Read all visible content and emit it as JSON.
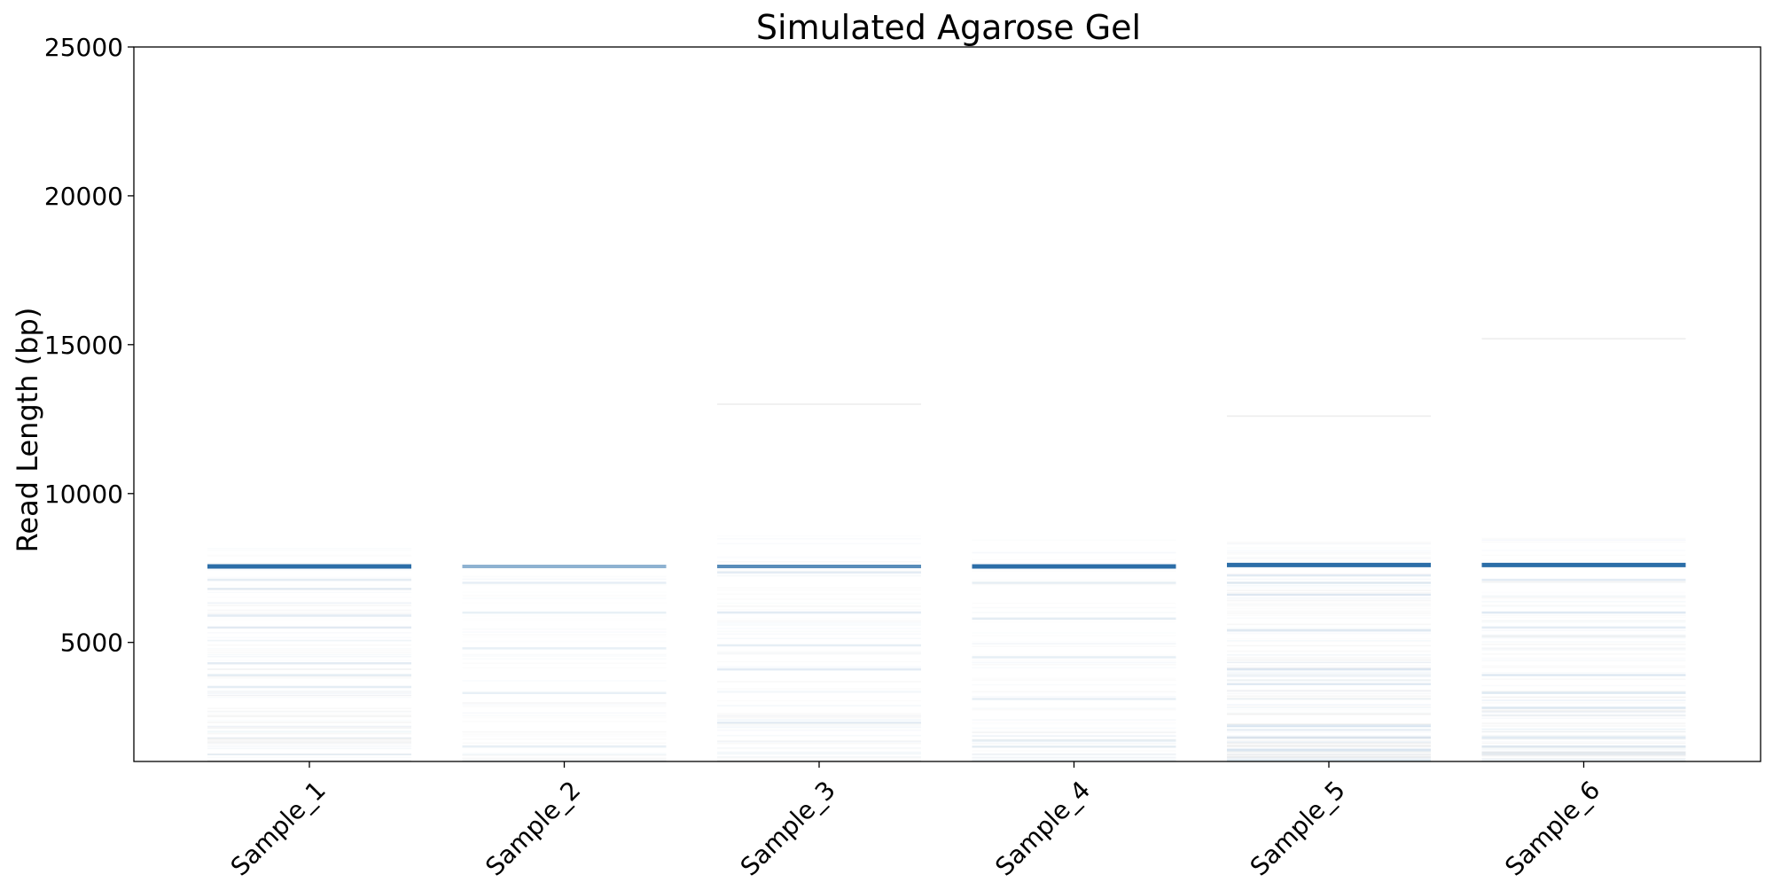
{
  "chart_data": {
    "type": "gel",
    "title": "Simulated Agarose Gel",
    "xlabel": "",
    "ylabel": "Read Length (bp)",
    "ylim": [
      1000,
      25000
    ],
    "yticks": [
      5000,
      10000,
      15000,
      20000,
      25000
    ],
    "grid": false,
    "legend": "none",
    "categories": [
      "Sample_1",
      "Sample_2",
      "Sample_3",
      "Sample_4",
      "Sample_5",
      "Sample_6"
    ],
    "lanes": [
      {
        "label": "Sample_1",
        "main_band": {
          "length": 7550,
          "intensity": 1.0
        },
        "smear": {
          "min": 1000,
          "max": 8200,
          "density": 0.55
        },
        "faint_bands": [
          7100,
          6800,
          5900,
          5500,
          4300,
          3900,
          3500
        ]
      },
      {
        "label": "Sample_2",
        "main_band": {
          "length": 7550,
          "intensity": 0.45
        },
        "smear": {
          "min": 1000,
          "max": 7300,
          "density": 0.25
        },
        "faint_bands": [
          7000,
          6000,
          4800,
          3300,
          1500
        ]
      },
      {
        "label": "Sample_3",
        "main_band": {
          "length": 7550,
          "intensity": 0.75
        },
        "smear": {
          "min": 1000,
          "max": 8600,
          "density": 0.45
        },
        "faint_bands": [
          13000,
          7350,
          6000,
          4900,
          4100,
          2300
        ]
      },
      {
        "label": "Sample_4",
        "main_band": {
          "length": 7550,
          "intensity": 1.0
        },
        "smear": {
          "min": 1000,
          "max": 8800,
          "density": 0.35
        },
        "faint_bands": [
          7000,
          5800,
          4500,
          3100,
          1700,
          1500
        ]
      },
      {
        "label": "Sample_5",
        "main_band": {
          "length": 7600,
          "intensity": 1.0
        },
        "smear": {
          "min": 1000,
          "max": 8700,
          "density": 0.85
        },
        "faint_bands": [
          12600,
          7250,
          7000,
          6600,
          5400,
          4100,
          3600,
          2200,
          1800,
          1400
        ]
      },
      {
        "label": "Sample_6",
        "main_band": {
          "length": 7600,
          "intensity": 1.0
        },
        "smear": {
          "min": 1000,
          "max": 8500,
          "density": 0.7
        },
        "faint_bands": [
          15200,
          7100,
          6000,
          5500,
          3900,
          3300,
          2800,
          1800,
          1500
        ]
      }
    ],
    "colors": {
      "band": "#2c6ea8",
      "smear_blue": "#a8c4dc",
      "smear_grey": "#c8c8c8",
      "axis": "#000000"
    }
  }
}
